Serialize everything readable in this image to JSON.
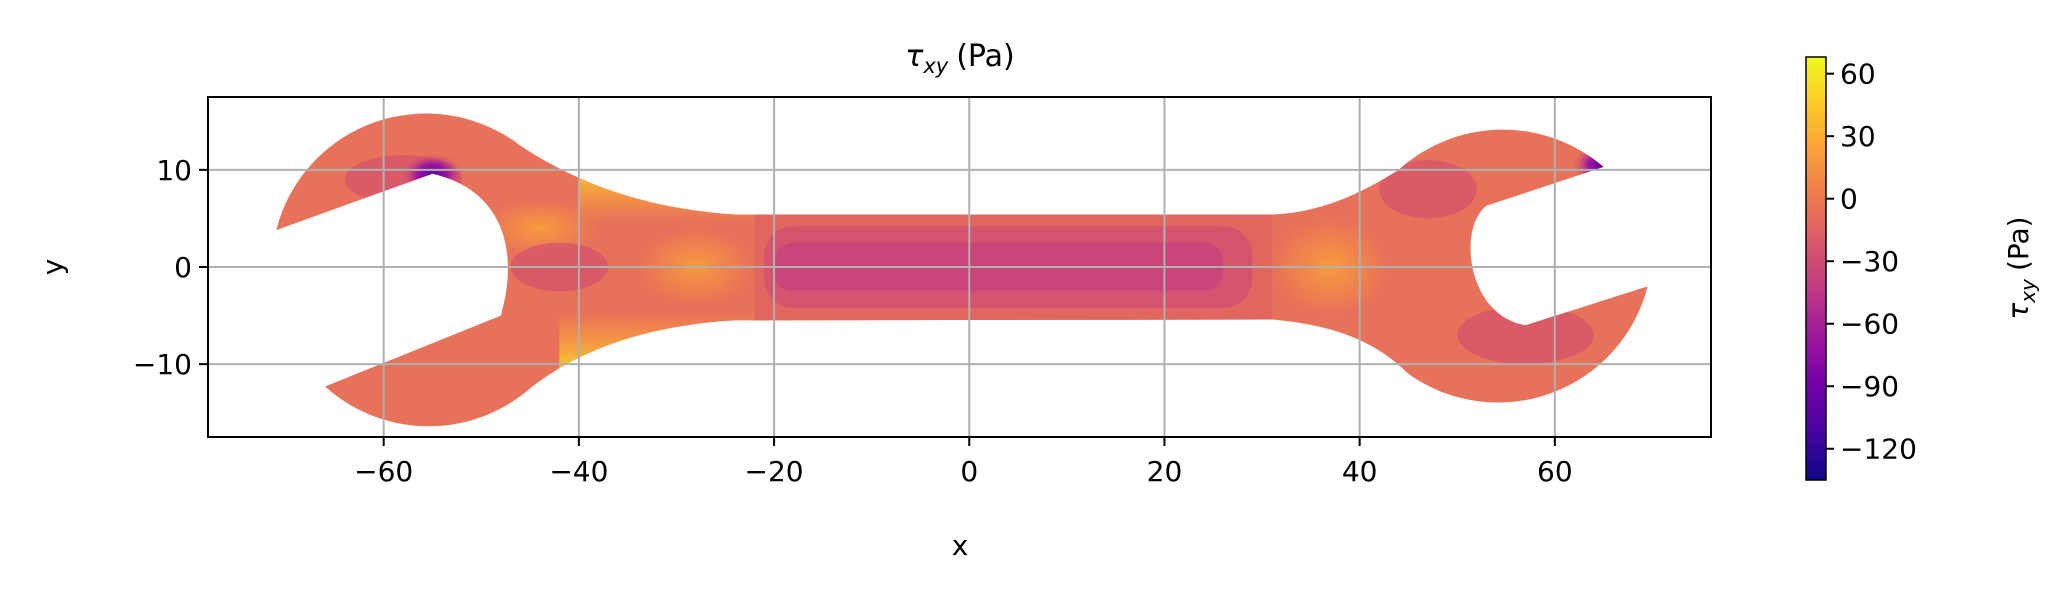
{
  "chart_data": {
    "type": "contour",
    "title": {
      "symbol": "τ",
      "subscript": "xy",
      "unit": "(Pa)"
    },
    "xlabel": "x",
    "ylabel": "y",
    "xlim": [
      -78,
      76
    ],
    "ylim": [
      -17.5,
      17.5
    ],
    "x_ticks": [
      -60,
      -40,
      -20,
      0,
      20,
      40,
      60
    ],
    "x_tick_labels": [
      "−60",
      "−40",
      "−20",
      "0",
      "20",
      "40",
      "60"
    ],
    "y_ticks": [
      -10,
      0,
      10
    ],
    "y_tick_labels": [
      "−10",
      "0",
      "10"
    ],
    "grid": true,
    "colormap": "plasma",
    "colorbar": {
      "range": [
        -135,
        68
      ],
      "ticks": [
        60,
        30,
        0,
        -30,
        -60,
        -90,
        -120
      ],
      "tick_labels": [
        "60",
        "30",
        "0",
        "−30",
        "−60",
        "−90",
        "−120"
      ],
      "label": {
        "symbol": "τ",
        "subscript": "xy",
        "unit": "(Pa)"
      },
      "colors": [
        "#0d0887",
        "#46039f",
        "#7201a8",
        "#9c179e",
        "#bd3786",
        "#d8576b",
        "#ed7953",
        "#fb9f3a",
        "#fdca26",
        "#f0f921"
      ]
    },
    "shape": "wrench",
    "regions": [
      {
        "name": "handle_shaft",
        "x_range": [
          -22,
          31
        ],
        "y_range": [
          -5.5,
          5.5
        ],
        "value": -25
      },
      {
        "name": "handle_core",
        "x_range": [
          -20,
          26
        ],
        "y_range": [
          -2.5,
          2.5
        ],
        "value": -35
      },
      {
        "name": "upper_neck_edge",
        "x_range": [
          -40,
          -22
        ],
        "value": 60
      },
      {
        "name": "lower_neck_edge",
        "x_range": [
          -42,
          -22
        ],
        "value": 60
      },
      {
        "name": "left_jaw_tip",
        "x": -55,
        "y": 9.5,
        "value": -125
      },
      {
        "name": "right_jaw_tip",
        "x": 65,
        "y": 10.5,
        "value": -110
      }
    ]
  }
}
